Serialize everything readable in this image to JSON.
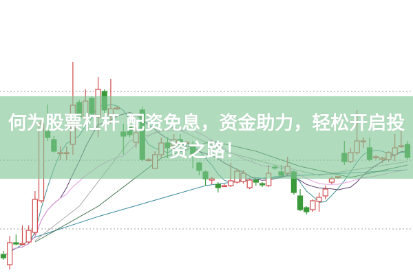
{
  "headline": "何为股票杠杆 配资免息，资金助力，轻松开启投资之路！",
  "colors": {
    "up": "#d24a4a",
    "down": "#3a9a3a",
    "grid": "#b0b0b0",
    "banner": "#80c694",
    "ma5": "#3f8f8f",
    "ma10": "#5a3a6a",
    "ma20": "#e29be0",
    "long_a": "#3a8aa0",
    "long_b": "#a8a8a8",
    "long_c": "#3d6e4a"
  },
  "chart_data": {
    "type": "candlestick",
    "ohlc_order": [
      "open",
      "high",
      "low",
      "close"
    ],
    "grid": "horizontal-dotted",
    "ylim": [
      0,
      32
    ],
    "candles": [
      [
        3.0,
        3.5,
        2.2,
        2.5
      ],
      [
        1.5,
        5.7,
        0.8,
        4.7
      ],
      [
        4.7,
        5.9,
        4.3,
        4.5
      ],
      [
        4.5,
        7.2,
        4.3,
        4.6
      ],
      [
        4.8,
        7.2,
        4.6,
        6.5
      ],
      [
        6.2,
        12.2,
        5.8,
        11.0
      ],
      [
        10.8,
        22.5,
        10.5,
        22.0
      ],
      [
        21.0,
        24.8,
        19.5,
        20.0
      ],
      [
        19.7,
        20.2,
        17.8,
        18.0
      ],
      [
        17.8,
        18.7,
        16.7,
        17.8
      ],
      [
        17.8,
        18.7,
        16.7,
        17.8
      ],
      [
        19.0,
        31.0,
        17.5,
        24.7
      ],
      [
        25.1,
        25.5,
        22.5,
        23.0
      ],
      [
        23.0,
        27.0,
        22.5,
        25.3
      ],
      [
        25.7,
        26.0,
        23.0,
        23.5
      ],
      [
        23.0,
        28.8,
        20.0,
        27.0
      ],
      [
        26.7,
        27.0,
        23.5,
        24.0
      ],
      [
        23.3,
        28.5,
        22.0,
        24.2
      ],
      [
        24.3,
        24.6,
        24.0,
        24.3
      ],
      [
        20.8,
        22.0,
        17.5,
        20.2
      ],
      [
        21.8,
        22.0,
        20.0,
        20.4
      ],
      [
        19.3,
        21.5,
        18.5,
        20.7
      ],
      [
        24.0,
        24.5,
        16.5,
        16.8
      ],
      [
        16.8,
        17.0,
        16.5,
        16.8
      ],
      [
        15.5,
        18.0,
        15.5,
        17.5
      ],
      [
        17.5,
        20.0,
        17.0,
        19.2
      ],
      [
        19.2,
        20.0,
        17.0,
        18.5
      ],
      [
        18.8,
        20.5,
        18.0,
        19.7
      ],
      [
        19.7,
        20.5,
        18.5,
        19.0
      ],
      [
        19.3,
        19.5,
        19.0,
        19.3
      ],
      [
        19.0,
        19.5,
        15.5,
        17.5
      ],
      [
        16.3,
        16.5,
        14.5,
        15.2
      ],
      [
        15.0,
        15.2,
        13.0,
        14.0
      ],
      [
        13.8,
        14.3,
        13.2,
        14.0
      ],
      [
        13.2,
        13.5,
        12.0,
        12.7
      ],
      [
        13.0,
        13.2,
        12.8,
        13.0
      ],
      [
        13.0,
        16.3,
        12.8,
        13.7
      ],
      [
        13.5,
        15.5,
        13.3,
        15.1
      ],
      [
        13.6,
        15.3,
        13.3,
        14.8
      ],
      [
        12.7,
        14.0,
        12.5,
        13.8
      ],
      [
        13.8,
        14.0,
        13.0,
        13.5
      ],
      [
        13.3,
        13.5,
        12.8,
        13.1
      ],
      [
        13.0,
        16.0,
        12.8,
        14.8
      ],
      [
        15.7,
        16.0,
        15.3,
        15.6
      ],
      [
        15.0,
        16.0,
        14.2,
        14.5
      ],
      [
        14.8,
        17.2,
        14.5,
        15.8
      ],
      [
        15.0,
        15.2,
        11.7,
        12.0
      ],
      [
        11.5,
        12.5,
        9.3,
        9.5
      ],
      [
        9.8,
        10.0,
        8.8,
        9.2
      ],
      [
        9.5,
        11.0,
        9.2,
        10.8
      ],
      [
        10.7,
        12.0,
        9.2,
        11.3
      ],
      [
        11.5,
        13.0,
        11.0,
        12.5
      ],
      [
        13.5,
        14.3,
        13.2,
        14.0
      ],
      [
        14.2,
        14.4,
        14.0,
        14.3
      ],
      [
        17.7,
        19.5,
        16.0,
        16.5
      ],
      [
        16.5,
        18.5,
        16.3,
        17.8
      ],
      [
        17.8,
        24.0,
        17.5,
        19.5
      ],
      [
        19.5,
        20.0,
        18.5,
        19.5
      ],
      [
        18.5,
        20.0,
        16.5,
        16.8
      ],
      [
        17.2,
        17.4,
        16.8,
        17.2
      ],
      [
        17.0,
        17.2,
        16.3,
        17.0
      ],
      [
        16.8,
        18.0,
        16.5,
        17.8
      ],
      [
        17.5,
        20.5,
        16.5,
        18.5
      ],
      [
        18.8,
        21.0,
        18.5,
        18.8
      ],
      [
        19.0,
        19.5,
        16.8,
        17.1
      ]
    ],
    "moving_averages_computed": [
      5,
      10,
      20
    ],
    "long_lines": [
      {
        "color_key": "long_a",
        "points": [
          [
            0,
            2.8
          ],
          [
            5,
            5.5
          ],
          [
            15,
            8.5
          ],
          [
            32,
            13.0
          ],
          [
            43,
            14.3
          ],
          [
            54,
            14.8
          ],
          [
            64,
            15.3
          ]
        ]
      },
      {
        "color_key": "long_b",
        "points": [
          [
            5,
            5.0
          ],
          [
            12,
            10.0
          ],
          [
            20,
            19.5
          ],
          [
            27,
            21.5
          ],
          [
            35,
            18.0
          ],
          [
            43,
            16.0
          ],
          [
            50,
            14.5
          ],
          [
            64,
            16.5
          ]
        ]
      },
      {
        "color_key": "long_c",
        "points": [
          [
            5,
            4.8
          ],
          [
            15,
            10.0
          ],
          [
            25,
            17.0
          ],
          [
            33,
            19.5
          ],
          [
            40,
            18.0
          ],
          [
            47,
            15.8
          ],
          [
            55,
            14.2
          ],
          [
            64,
            16.0
          ]
        ]
      }
    ]
  }
}
